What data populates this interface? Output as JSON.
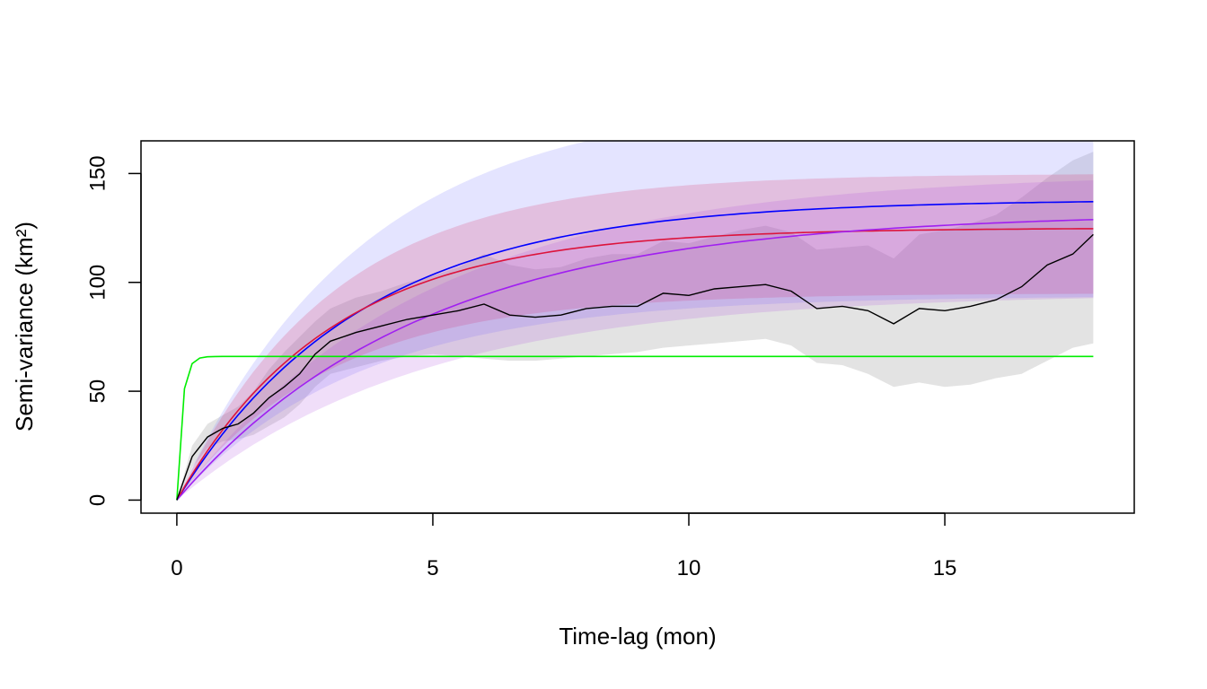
{
  "chart_data": {
    "type": "line",
    "title": "",
    "xlabel": "Time-lag (mon)",
    "ylabel": "Semi-variance (km²)",
    "xlim": [
      -0.7,
      18.7
    ],
    "ylim": [
      -6,
      165
    ],
    "x_ticks": [
      0,
      5,
      10,
      15
    ],
    "y_ticks": [
      0,
      50,
      100,
      150
    ],
    "x_tick_labels": [
      "0",
      "5",
      "10",
      "15"
    ],
    "y_tick_labels": [
      "0",
      "50",
      "100",
      "150"
    ],
    "grid": false,
    "legend": "none",
    "empirical": {
      "color": "#000000",
      "band_color": "#e3e3e3",
      "x": [
        0,
        0.3,
        0.6,
        0.9,
        1.2,
        1.5,
        1.8,
        2.1,
        2.4,
        2.7,
        3.0,
        3.5,
        4.0,
        4.5,
        5.0,
        5.5,
        6.0,
        6.5,
        7.0,
        7.5,
        8.0,
        8.5,
        9.0,
        9.5,
        10.0,
        10.5,
        11.0,
        11.5,
        12.0,
        12.5,
        13.0,
        13.5,
        14.0,
        14.5,
        15.0,
        15.5,
        16.0,
        16.5,
        17.0,
        17.5,
        17.9
      ],
      "y": [
        0,
        20,
        29,
        33,
        35,
        40,
        47,
        52,
        58,
        67,
        73,
        77,
        80,
        83,
        85,
        87,
        90,
        85,
        84,
        85,
        88,
        89,
        89,
        95,
        94,
        97,
        98,
        99,
        96,
        88,
        89,
        87,
        81,
        88,
        87,
        89,
        92,
        98,
        108,
        113,
        122
      ],
      "lower": [
        0,
        15,
        24,
        27,
        28,
        30,
        34,
        38,
        44,
        52,
        58,
        61,
        64,
        66,
        67,
        66,
        65,
        64,
        64,
        65,
        66,
        67,
        68,
        70,
        71,
        72,
        73,
        74,
        71,
        63,
        62,
        58,
        52,
        54,
        52,
        53,
        56,
        58,
        64,
        70,
        72
      ],
      "upper": [
        0,
        25,
        35,
        39,
        43,
        50,
        60,
        68,
        75,
        82,
        88,
        93,
        96,
        100,
        103,
        107,
        113,
        108,
        106,
        107,
        111,
        113,
        113,
        119,
        118,
        121,
        124,
        126,
        123,
        115,
        116,
        117,
        111,
        122,
        124,
        127,
        131,
        139,
        148,
        156,
        160
      ]
    },
    "series": [
      {
        "color": "#0000ff",
        "band_color": "rgba(130,130,255,0.22)",
        "sill": 138,
        "tau": 3.6,
        "band_low": 0.68,
        "band_high": 1.34
      },
      {
        "color": "#dc143c",
        "band_color": "rgba(220,60,110,0.22)",
        "sill": 125,
        "tau": 3.0,
        "band_low": 0.76,
        "band_high": 1.2
      },
      {
        "color": "#a020f0",
        "band_color": "rgba(170,70,220,0.18)",
        "sill": 132,
        "tau": 4.8,
        "band_low": 0.72,
        "band_high": 1.14
      },
      {
        "color": "#00ee00",
        "band_color": "none",
        "sill": 66,
        "tau": 0.1,
        "band_low": 1,
        "band_high": 1
      }
    ]
  }
}
